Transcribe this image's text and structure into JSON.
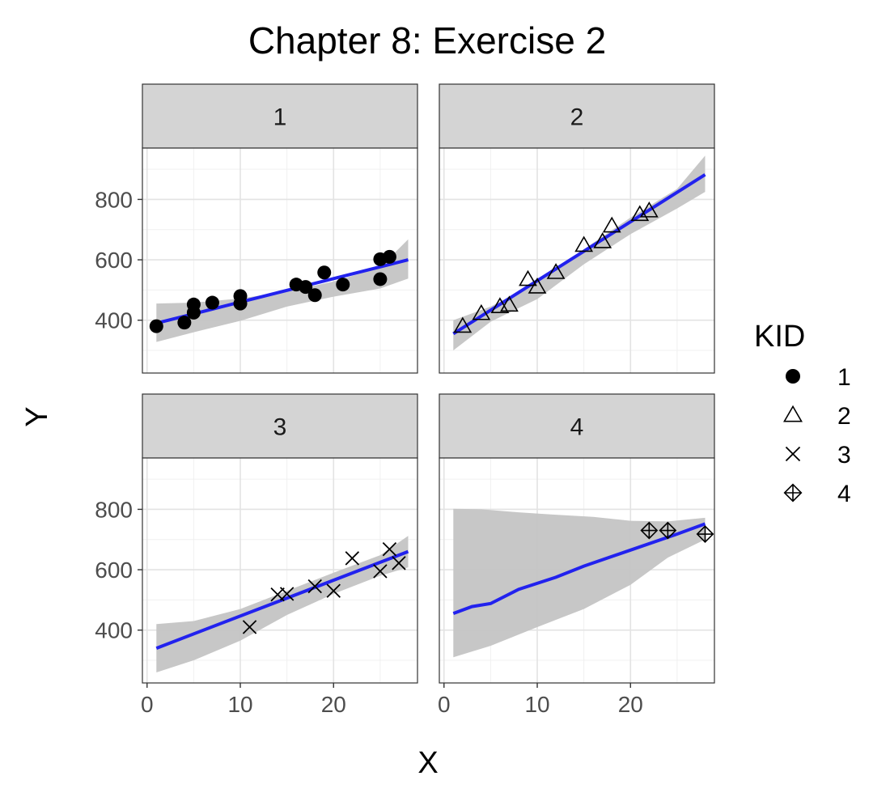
{
  "chart_data": {
    "type": "scatter",
    "title": "Chapter 8: Exercise 2",
    "xlabel": "X",
    "ylabel": "Y",
    "xlim": [
      -0.5,
      29
    ],
    "ylim": [
      225,
      970
    ],
    "x_ticks": [
      0,
      10,
      20
    ],
    "y_ticks": [
      400,
      600,
      800
    ],
    "grid": true,
    "legend": {
      "title": "KID",
      "position": "right",
      "entries": [
        {
          "label": "1",
          "shape": "filled-circle"
        },
        {
          "label": "2",
          "shape": "open-triangle"
        },
        {
          "label": "3",
          "shape": "cross"
        },
        {
          "label": "4",
          "shape": "circle-plus-diamond"
        }
      ]
    },
    "smooth_color": "#2222ee",
    "ribbon_color": "#c4c4c4",
    "strip_fill": "#d4d4d4",
    "panels": [
      {
        "kid": "1",
        "shape": "filled-circle",
        "points": [
          [
            1,
            380
          ],
          [
            4,
            392
          ],
          [
            5,
            425
          ],
          [
            5,
            452
          ],
          [
            7,
            458
          ],
          [
            10,
            455
          ],
          [
            10,
            480
          ],
          [
            16,
            518
          ],
          [
            17,
            510
          ],
          [
            18,
            483
          ],
          [
            19,
            558
          ],
          [
            21,
            518
          ],
          [
            25,
            536
          ],
          [
            25,
            602
          ],
          [
            26,
            610
          ]
        ],
        "fit": [
          [
            1,
            390
          ],
          [
            28,
            600
          ]
        ],
        "ribbon_upper": [
          [
            1,
            455
          ],
          [
            5,
            458
          ],
          [
            10,
            472
          ],
          [
            15,
            495
          ],
          [
            20,
            528
          ],
          [
            25,
            575
          ],
          [
            28,
            668
          ]
        ],
        "ribbon_lower": [
          [
            1,
            328
          ],
          [
            5,
            360
          ],
          [
            10,
            398
          ],
          [
            15,
            445
          ],
          [
            20,
            478
          ],
          [
            25,
            505
          ],
          [
            28,
            538
          ]
        ]
      },
      {
        "kid": "2",
        "shape": "open-triangle",
        "points": [
          [
            2,
            380
          ],
          [
            4,
            422
          ],
          [
            6,
            445
          ],
          [
            7,
            450
          ],
          [
            9,
            535
          ],
          [
            10,
            510
          ],
          [
            12,
            558
          ],
          [
            15,
            648
          ],
          [
            17,
            660
          ],
          [
            18,
            712
          ],
          [
            21,
            750
          ],
          [
            22,
            762
          ]
        ],
        "fit": [
          [
            1,
            355
          ],
          [
            28,
            882
          ]
        ],
        "ribbon_upper": [
          [
            1,
            400
          ],
          [
            5,
            445
          ],
          [
            10,
            525
          ],
          [
            15,
            635
          ],
          [
            20,
            740
          ],
          [
            25,
            835
          ],
          [
            28,
            945
          ]
        ],
        "ribbon_lower": [
          [
            1,
            300
          ],
          [
            5,
            395
          ],
          [
            10,
            470
          ],
          [
            15,
            585
          ],
          [
            20,
            685
          ],
          [
            25,
            770
          ],
          [
            28,
            825
          ]
        ]
      },
      {
        "kid": "3",
        "shape": "cross",
        "points": [
          [
            11,
            410
          ],
          [
            14,
            518
          ],
          [
            15,
            520
          ],
          [
            18,
            545
          ],
          [
            20,
            530
          ],
          [
            22,
            638
          ],
          [
            25,
            595
          ],
          [
            26,
            668
          ],
          [
            27,
            622
          ]
        ],
        "fit": [
          [
            1,
            340
          ],
          [
            28,
            660
          ]
        ],
        "ribbon_upper": [
          [
            1,
            420
          ],
          [
            5,
            430
          ],
          [
            10,
            470
          ],
          [
            15,
            530
          ],
          [
            20,
            590
          ],
          [
            25,
            648
          ],
          [
            28,
            712
          ]
        ],
        "ribbon_lower": [
          [
            1,
            260
          ],
          [
            5,
            300
          ],
          [
            10,
            365
          ],
          [
            15,
            450
          ],
          [
            20,
            520
          ],
          [
            25,
            580
          ],
          [
            28,
            608
          ]
        ]
      },
      {
        "kid": "4",
        "shape": "circle-plus-diamond",
        "points": [
          [
            22,
            730
          ],
          [
            24,
            730
          ],
          [
            28,
            718
          ]
        ],
        "fit": [
          [
            1,
            455
          ],
          [
            3,
            478
          ],
          [
            5,
            488
          ],
          [
            8,
            535
          ],
          [
            12,
            575
          ],
          [
            15,
            612
          ],
          [
            20,
            665
          ],
          [
            25,
            718
          ],
          [
            28,
            752
          ]
        ],
        "ribbon_upper": [
          [
            1,
            802
          ],
          [
            4,
            800
          ],
          [
            8,
            790
          ],
          [
            12,
            782
          ],
          [
            16,
            775
          ],
          [
            20,
            762
          ],
          [
            24,
            760
          ],
          [
            28,
            772
          ]
        ],
        "ribbon_lower": [
          [
            1,
            310
          ],
          [
            5,
            348
          ],
          [
            10,
            410
          ],
          [
            15,
            470
          ],
          [
            20,
            550
          ],
          [
            24,
            640
          ],
          [
            28,
            700
          ]
        ]
      }
    ]
  }
}
